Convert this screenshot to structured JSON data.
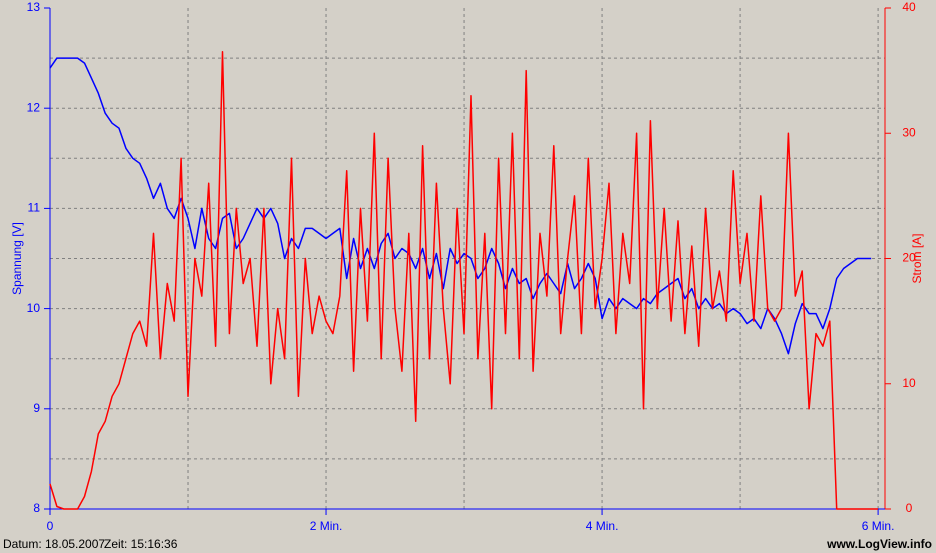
{
  "chart_data": {
    "type": "line",
    "y_label": "Spannung [V]",
    "y2_label": "Strom [A]",
    "footer_date": "Datum: 18.05.2007",
    "footer_time": "Zeit: 15:16:36",
    "footer_url": "www.LogView.info",
    "x": [
      0,
      0.05,
      0.1,
      0.15,
      0.2,
      0.25,
      0.3,
      0.35,
      0.4,
      0.45,
      0.5,
      0.55,
      0.6,
      0.65,
      0.7,
      0.75,
      0.8,
      0.85,
      0.9,
      0.95,
      1,
      1.05,
      1.1,
      1.15,
      1.2,
      1.25,
      1.3,
      1.35,
      1.4,
      1.45,
      1.5,
      1.55,
      1.6,
      1.65,
      1.7,
      1.75,
      1.8,
      1.85,
      1.9,
      1.95,
      2,
      2.05,
      2.1,
      2.15,
      2.2,
      2.25,
      2.3,
      2.35,
      2.4,
      2.45,
      2.5,
      2.55,
      2.6,
      2.65,
      2.7,
      2.75,
      2.8,
      2.85,
      2.9,
      2.95,
      3,
      3.05,
      3.1,
      3.15,
      3.2,
      3.25,
      3.3,
      3.35,
      3.4,
      3.45,
      3.5,
      3.55,
      3.6,
      3.65,
      3.7,
      3.75,
      3.8,
      3.85,
      3.9,
      3.95,
      4,
      4.05,
      4.1,
      4.15,
      4.2,
      4.25,
      4.3,
      4.35,
      4.4,
      4.45,
      4.5,
      4.55,
      4.6,
      4.65,
      4.7,
      4.75,
      4.8,
      4.85,
      4.9,
      4.95,
      5,
      5.05,
      5.1,
      5.15,
      5.2,
      5.25,
      5.3,
      5.35,
      5.4,
      5.45,
      5.5,
      5.55,
      5.6,
      5.65,
      5.7,
      5.75,
      5.8,
      5.85,
      5.9,
      5.95,
      6
    ],
    "series": [
      {
        "color": "#0000ff",
        "values": [
          12.4,
          12.5,
          12.5,
          12.5,
          12.5,
          12.45,
          12.3,
          12.15,
          11.95,
          11.85,
          11.8,
          11.6,
          11.5,
          11.45,
          11.3,
          11.1,
          11.25,
          11.0,
          10.9,
          11.1,
          10.9,
          10.6,
          11.0,
          10.7,
          10.6,
          10.9,
          10.95,
          10.6,
          10.7,
          10.85,
          11.0,
          10.9,
          11.0,
          10.85,
          10.5,
          10.7,
          10.6,
          10.8,
          10.8,
          10.75,
          10.7,
          10.75,
          10.8,
          10.3,
          10.7,
          10.4,
          10.6,
          10.4,
          10.65,
          10.75,
          10.5,
          10.6,
          10.55,
          10.4,
          10.6,
          10.3,
          10.55,
          10.2,
          10.6,
          10.45,
          10.55,
          10.5,
          10.3,
          10.4,
          10.6,
          10.45,
          10.2,
          10.4,
          10.25,
          10.3,
          10.1,
          10.25,
          10.35,
          10.25,
          10.15,
          10.45,
          10.2,
          10.3,
          10.45,
          10.3,
          9.9,
          10.1,
          10.0,
          10.1,
          10.05,
          10.0,
          10.1,
          10.05,
          10.15,
          10.2,
          10.25,
          10.3,
          10.1,
          10.2,
          10.0,
          10.1,
          10.0,
          10.05,
          9.95,
          10.0,
          9.95,
          9.85,
          9.9,
          9.8,
          10.0,
          9.9,
          9.75,
          9.55,
          9.85,
          10.05,
          9.95,
          9.95,
          9.8,
          10.0,
          10.3,
          10.4,
          10.45,
          10.5,
          10.5,
          10.5,
          null
        ]
      },
      {
        "color": "#ff0000",
        "axis": "y2",
        "values": [
          2,
          0.2,
          0,
          0,
          0,
          1,
          3,
          6,
          7,
          9,
          10,
          12,
          14,
          15,
          13,
          22,
          12,
          18,
          15,
          28,
          9,
          20,
          17,
          26,
          13,
          36.5,
          14,
          24,
          18,
          20,
          13,
          24,
          10,
          16,
          12,
          28,
          9,
          20,
          14,
          17,
          15,
          14,
          17,
          27,
          11,
          24,
          15,
          30,
          12,
          28,
          16,
          11,
          22,
          7,
          29,
          12,
          26,
          16,
          10,
          24,
          14,
          33,
          12,
          22,
          8,
          28,
          14,
          30,
          12,
          35,
          11,
          22,
          17,
          29,
          14,
          20,
          25,
          14,
          28,
          16,
          20,
          26,
          14,
          22,
          18,
          30,
          8,
          31,
          16,
          24,
          15,
          23,
          14,
          21,
          13,
          24,
          16,
          19,
          15,
          27,
          18,
          22,
          15,
          25,
          16,
          15,
          16,
          30,
          17,
          19,
          8,
          14,
          13,
          15,
          0,
          0,
          0,
          0,
          0,
          0,
          0
        ]
      }
    ],
    "xlim": [
      0,
      6.05
    ],
    "xticks": [
      0,
      {
        "value": 2,
        "label": "2 Min."
      },
      {
        "value": 4,
        "label": "4 Min."
      },
      {
        "value": 6,
        "label": "6 Min."
      }
    ],
    "xgrid": [
      1,
      3,
      5
    ],
    "ylim": [
      8,
      13
    ],
    "yticks": [
      8,
      9,
      10,
      11,
      12,
      13
    ],
    "ygrid": [
      8.5,
      9.5,
      10.5,
      11.5,
      12.5
    ],
    "y2lim": [
      0,
      40
    ],
    "y2ticks": [
      0,
      10,
      20,
      30,
      40
    ],
    "grid": true,
    "y_color": "#0000ff",
    "y2_color": "#ff0000",
    "background": "#d4d0c8"
  }
}
